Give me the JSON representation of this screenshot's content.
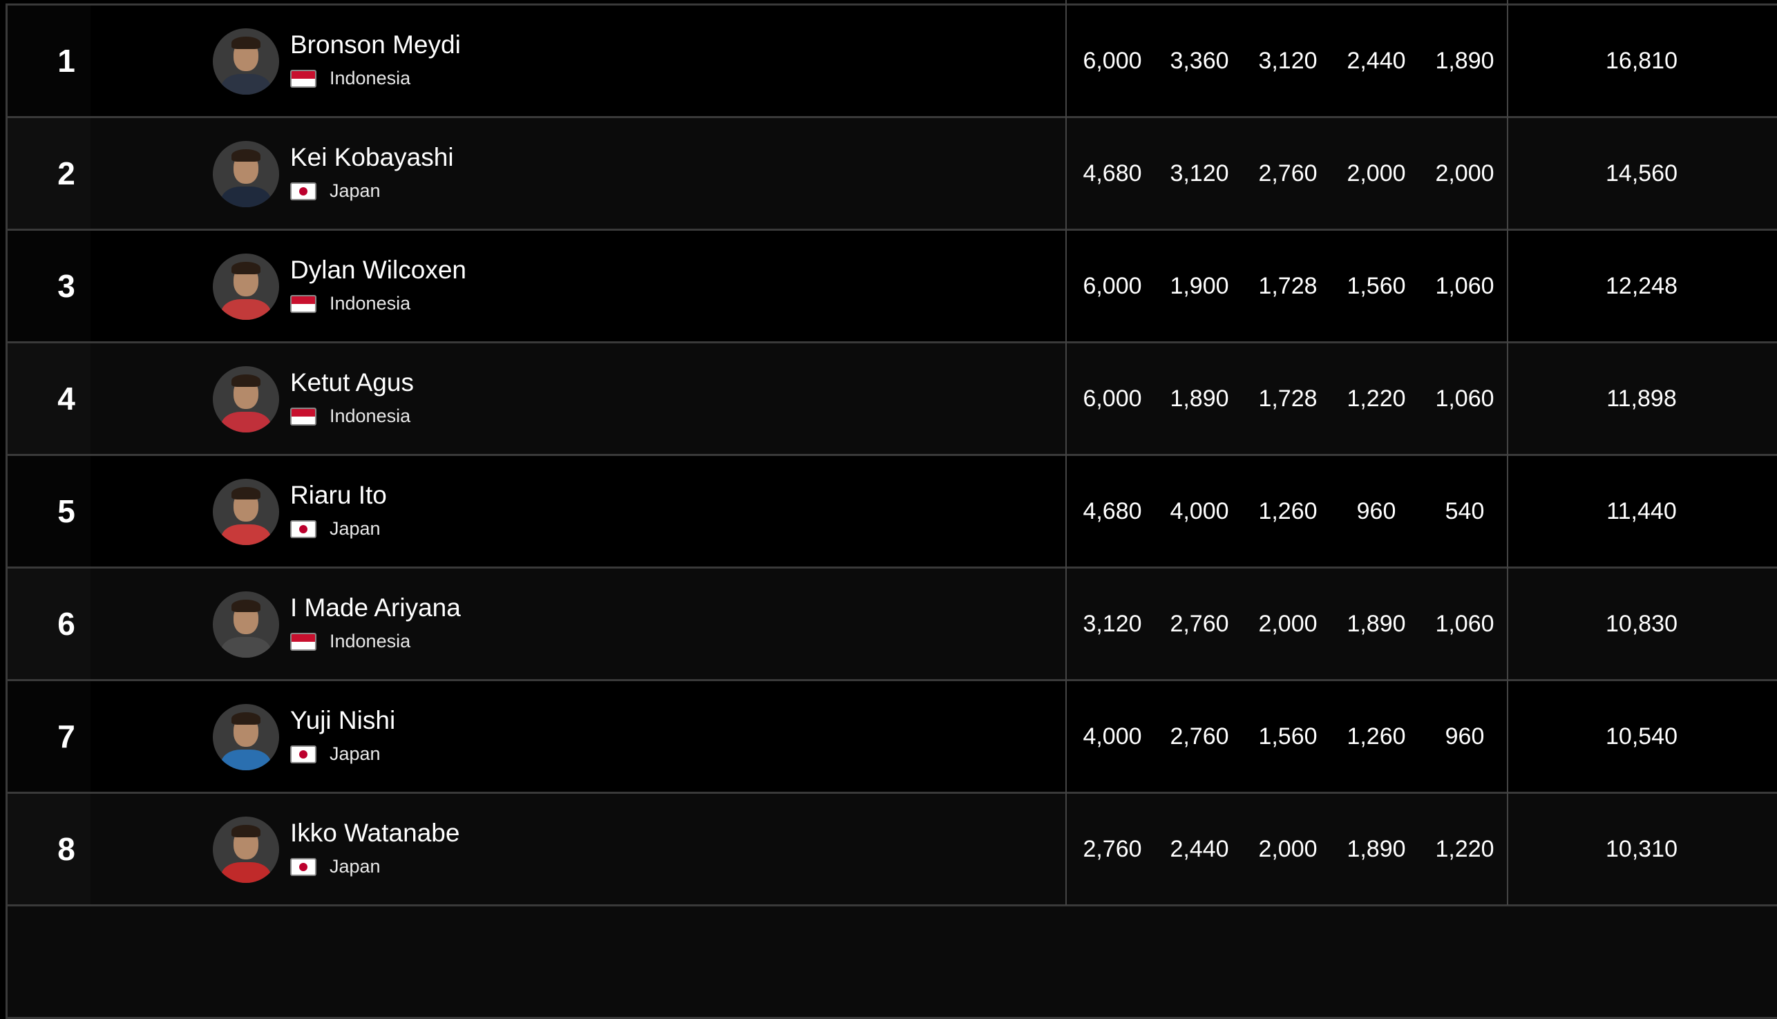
{
  "colors": {
    "background": "#000000",
    "row_alt": "#0b0b0b",
    "divider": "#3a3a3a",
    "text": "#ffffff",
    "indonesia_red": "#c8102e",
    "japan_red": "#bc002d"
  },
  "rows": [
    {
      "rank": "1",
      "name": "Bronson Meydi",
      "country": "Indonesia",
      "flag": "indonesia-flag-icon",
      "scores": [
        "6,000",
        "3,360",
        "3,120",
        "2,440",
        "1,890"
      ],
      "total": "16,810"
    },
    {
      "rank": "2",
      "name": "Kei Kobayashi",
      "country": "Japan",
      "flag": "japan-flag-icon",
      "scores": [
        "4,680",
        "3,120",
        "2,760",
        "2,000",
        "2,000"
      ],
      "total": "14,560"
    },
    {
      "rank": "3",
      "name": "Dylan Wilcoxen",
      "country": "Indonesia",
      "flag": "indonesia-flag-icon",
      "scores": [
        "6,000",
        "1,900",
        "1,728",
        "1,560",
        "1,060"
      ],
      "total": "12,248"
    },
    {
      "rank": "4",
      "name": "Ketut Agus",
      "country": "Indonesia",
      "flag": "indonesia-flag-icon",
      "scores": [
        "6,000",
        "1,890",
        "1,728",
        "1,220",
        "1,060"
      ],
      "total": "11,898"
    },
    {
      "rank": "5",
      "name": "Riaru Ito",
      "country": "Japan",
      "flag": "japan-flag-icon",
      "scores": [
        "4,680",
        "4,000",
        "1,260",
        "960",
        "540"
      ],
      "total": "11,440"
    },
    {
      "rank": "6",
      "name": "I Made Ariyana",
      "country": "Indonesia",
      "flag": "indonesia-flag-icon",
      "scores": [
        "3,120",
        "2,760",
        "2,000",
        "1,890",
        "1,060"
      ],
      "total": "10,830"
    },
    {
      "rank": "7",
      "name": "Yuji Nishi",
      "country": "Japan",
      "flag": "japan-flag-icon",
      "scores": [
        "4,000",
        "2,760",
        "1,560",
        "1,260",
        "960"
      ],
      "total": "10,540"
    },
    {
      "rank": "8",
      "name": "Ikko Watanabe",
      "country": "Japan",
      "flag": "japan-flag-icon",
      "scores": [
        "2,760",
        "2,440",
        "2,000",
        "1,890",
        "1,220"
      ],
      "total": "10,310"
    }
  ]
}
